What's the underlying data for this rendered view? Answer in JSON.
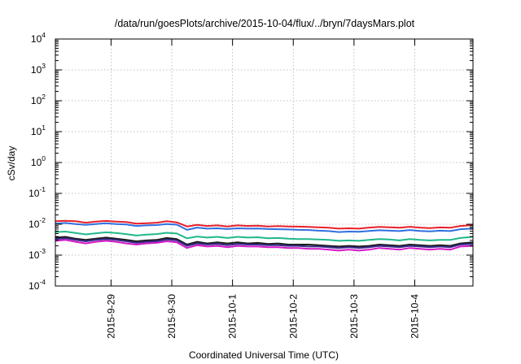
{
  "chart_data": {
    "type": "line",
    "title": "/data/run/goesPlots/archive/2015-10-04/flux/../bryn/7daysMars.plot",
    "xlabel": "Coordinated Universal Time (UTC)",
    "ylabel": "cSv/day",
    "yscale": "log",
    "ylim": [
      0.0001,
      10000
    ],
    "y_ticks": [
      {
        "base": "10",
        "exp": "-4"
      },
      {
        "base": "10",
        "exp": "-3"
      },
      {
        "base": "10",
        "exp": "-2"
      },
      {
        "base": "10",
        "exp": "-1"
      },
      {
        "base": "10",
        "exp": "0"
      },
      {
        "base": "10",
        "exp": "1"
      },
      {
        "base": "10",
        "exp": "2"
      },
      {
        "base": "10",
        "exp": "3"
      },
      {
        "base": "10",
        "exp": "4"
      }
    ],
    "x_start": "2015-09-28T02:00",
    "x_end": "2015-10-04T23:00",
    "x_ticks": [
      "2015-9-29",
      "2015-9-30",
      "2015-10-1",
      "2015-10-2",
      "2015-10-3",
      "2015-10-4"
    ],
    "grid": true,
    "x_values": [
      "2015-09-28T02:00",
      "2015-09-28T06:00",
      "2015-09-28T10:00",
      "2015-09-28T14:00",
      "2015-09-28T18:00",
      "2015-09-28T22:00",
      "2015-09-29T02:00",
      "2015-09-29T06:00",
      "2015-09-29T10:00",
      "2015-09-29T14:00",
      "2015-09-29T18:00",
      "2015-09-29T22:00",
      "2015-09-30T02:00",
      "2015-09-30T06:00",
      "2015-09-30T10:00",
      "2015-09-30T14:00",
      "2015-09-30T18:00",
      "2015-09-30T22:00",
      "2015-10-01T02:00",
      "2015-10-01T06:00",
      "2015-10-01T10:00",
      "2015-10-01T14:00",
      "2015-10-01T18:00",
      "2015-10-01T22:00",
      "2015-10-02T02:00",
      "2015-10-02T06:00",
      "2015-10-02T10:00",
      "2015-10-02T14:00",
      "2015-10-02T18:00",
      "2015-10-02T22:00",
      "2015-10-03T02:00",
      "2015-10-03T06:00",
      "2015-10-03T10:00",
      "2015-10-03T14:00",
      "2015-10-03T18:00",
      "2015-10-03T22:00",
      "2015-10-04T02:00",
      "2015-10-04T06:00",
      "2015-10-04T10:00",
      "2015-10-04T14:00",
      "2015-10-04T18:00",
      "2015-10-04T23:00"
    ],
    "series": [
      {
        "color": "#e8202a",
        "values": [
          0.0125,
          0.013,
          0.0125,
          0.0112,
          0.0122,
          0.0128,
          0.0122,
          0.0118,
          0.0105,
          0.0108,
          0.0112,
          0.0125,
          0.0115,
          0.0085,
          0.0095,
          0.0088,
          0.0092,
          0.0085,
          0.0092,
          0.0088,
          0.009,
          0.0085,
          0.0087,
          0.0085,
          0.0084,
          0.0082,
          0.008,
          0.0077,
          0.0072,
          0.0074,
          0.0072,
          0.0078,
          0.0082,
          0.008,
          0.0077,
          0.0083,
          0.0078,
          0.0075,
          0.0079,
          0.0077,
          0.0088,
          0.0094
        ]
      },
      {
        "color": "#2f6fe0",
        "values": [
          0.0105,
          0.011,
          0.0102,
          0.0095,
          0.0102,
          0.0108,
          0.0102,
          0.0098,
          0.0088,
          0.0092,
          0.0094,
          0.0102,
          0.0097,
          0.0066,
          0.0078,
          0.0072,
          0.0074,
          0.007,
          0.0074,
          0.0072,
          0.0073,
          0.007,
          0.0069,
          0.0068,
          0.0066,
          0.0065,
          0.0062,
          0.006,
          0.0056,
          0.0058,
          0.0057,
          0.0061,
          0.0064,
          0.0062,
          0.006,
          0.0065,
          0.0061,
          0.0059,
          0.0062,
          0.006,
          0.0069,
          0.0073
        ]
      },
      {
        "color": "#20b88a",
        "values": [
          0.0056,
          0.0058,
          0.0052,
          0.0047,
          0.0051,
          0.0055,
          0.0052,
          0.0048,
          0.0043,
          0.0046,
          0.0048,
          0.0053,
          0.005,
          0.0035,
          0.004,
          0.0037,
          0.0039,
          0.0036,
          0.0039,
          0.0037,
          0.0038,
          0.0035,
          0.0036,
          0.0034,
          0.0033,
          0.0033,
          0.0032,
          0.0031,
          0.0029,
          0.003,
          0.0029,
          0.0031,
          0.0033,
          0.0032,
          0.003,
          0.0033,
          0.0031,
          0.003,
          0.0031,
          0.0031,
          0.0036,
          0.0039
        ]
      },
      {
        "color": "#1a1a1a",
        "values": [
          0.0037,
          0.0039,
          0.0034,
          0.0031,
          0.0034,
          0.0037,
          0.0034,
          0.0031,
          0.0028,
          0.003,
          0.0031,
          0.0036,
          0.0033,
          0.0022,
          0.0027,
          0.0024,
          0.0026,
          0.0024,
          0.0026,
          0.0024,
          0.0025,
          0.0023,
          0.0024,
          0.0022,
          0.0022,
          0.0022,
          0.0021,
          0.002,
          0.0019,
          0.002,
          0.0019,
          0.002,
          0.0022,
          0.0021,
          0.002,
          0.0022,
          0.0021,
          0.002,
          0.0021,
          0.002,
          0.0024,
          0.0026
        ]
      },
      {
        "color": "#3a2a8a",
        "values": [
          0.0033,
          0.0035,
          0.0031,
          0.0028,
          0.0031,
          0.0033,
          0.0031,
          0.0028,
          0.0025,
          0.0027,
          0.0028,
          0.0032,
          0.003,
          0.002,
          0.0024,
          0.0022,
          0.0023,
          0.0021,
          0.0023,
          0.0022,
          0.0022,
          0.0021,
          0.0021,
          0.002,
          0.002,
          0.0019,
          0.0019,
          0.0018,
          0.0017,
          0.0018,
          0.0017,
          0.0018,
          0.002,
          0.0019,
          0.0018,
          0.002,
          0.0019,
          0.0018,
          0.0019,
          0.0018,
          0.0022,
          0.0023
        ]
      },
      {
        "color": "#d418c8",
        "values": [
          0.0029,
          0.0031,
          0.0027,
          0.0024,
          0.0027,
          0.0029,
          0.0027,
          0.0024,
          0.0022,
          0.0024,
          0.0025,
          0.0028,
          0.0026,
          0.0017,
          0.0021,
          0.0019,
          0.002,
          0.0018,
          0.002,
          0.0019,
          0.0019,
          0.0018,
          0.0018,
          0.0017,
          0.0017,
          0.0016,
          0.0016,
          0.0015,
          0.0014,
          0.0015,
          0.0014,
          0.0015,
          0.0017,
          0.0016,
          0.0015,
          0.0017,
          0.0016,
          0.0015,
          0.0016,
          0.0015,
          0.0019,
          0.002
        ]
      }
    ]
  }
}
